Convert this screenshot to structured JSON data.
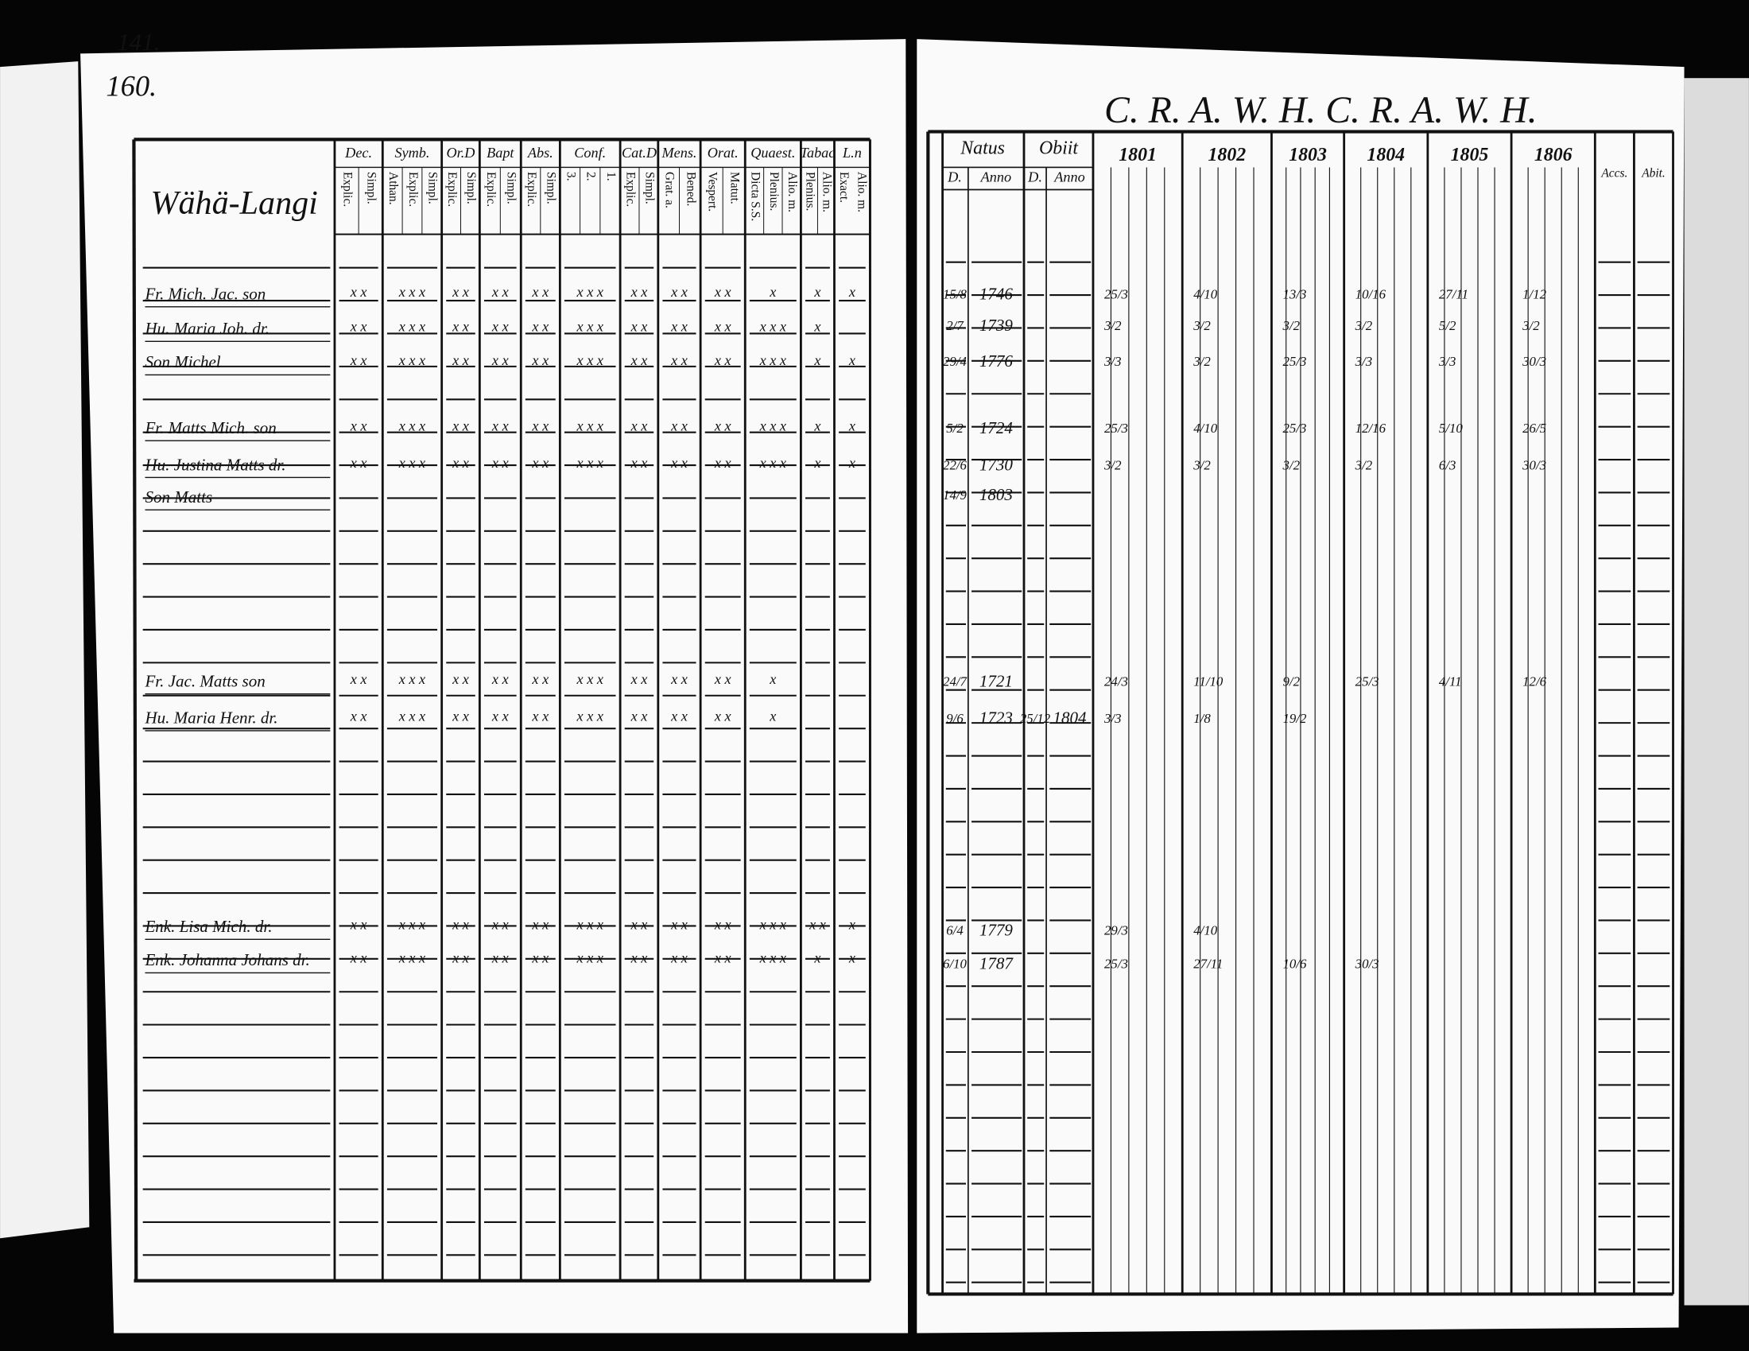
{
  "left_page": {
    "page_numbers": [
      "141.",
      "160."
    ],
    "village": "Wähä-Langi",
    "columns": [
      {
        "label": "Dec.",
        "sub": [
          "Explic.",
          "Simpl."
        ]
      },
      {
        "label": "Symb.",
        "sub": [
          "Athan.",
          "Explic.",
          "Simpl."
        ]
      },
      {
        "label": "Or.D",
        "sub": [
          "Explic.",
          "Simpl."
        ]
      },
      {
        "label": "Bapt",
        "sub": [
          "Explic.",
          "Simpl."
        ]
      },
      {
        "label": "Abs.",
        "sub": [
          "Explic.",
          "Simpl."
        ]
      },
      {
        "label": "Conf.",
        "sub": [
          "3.",
          "2.",
          "1."
        ]
      },
      {
        "label": "Cat.D",
        "sub": [
          "Explic.",
          "Simpl."
        ]
      },
      {
        "label": "Mens.",
        "sub": [
          "Grat. a.",
          "Bened."
        ]
      },
      {
        "label": "Orat.",
        "sub": [
          "Vespert.",
          "Matut."
        ]
      },
      {
        "label": "Quaest.",
        "sub": [
          "Dicta S.S.",
          "Plenius.",
          "Alio. m."
        ]
      },
      {
        "label": "Tabac",
        "sub": [
          "Plenius.",
          "Alio. m."
        ]
      },
      {
        "label": "L.n",
        "sub": [
          "Exact.",
          "Alio. m."
        ]
      }
    ],
    "persons": [
      {
        "name": "Fr. Mich. Jac. son",
        "marks": [
          "x x",
          "x x x",
          "x x",
          "x x",
          "x x",
          "x x x",
          "x x",
          "x x",
          "x x",
          "x",
          "x",
          "x"
        ]
      },
      {
        "name": "Hu. Maria Joh. dr.",
        "marks": [
          "x x",
          "x x x",
          "x x",
          "x x",
          "x x",
          "x x x",
          "x x",
          "x x",
          "x x",
          "x x x",
          "x"
        ]
      },
      {
        "name": "Son Michel",
        "marks": [
          "x x",
          "x x x",
          "x x",
          "x x",
          "x x",
          "x x x",
          "x x",
          "x x",
          "x x",
          "x x x",
          "x",
          "x"
        ]
      },
      {
        "name": "Fr. Matts Mich. son",
        "marks": [
          "x x",
          "x x x",
          "x x",
          "x x",
          "x x",
          "x x x",
          "x x",
          "x x",
          "x x",
          "x x x",
          "x",
          "x"
        ]
      },
      {
        "name": "Hu. Justina Matts dr.",
        "marks": [
          "x x",
          "x x x",
          "x x",
          "x x",
          "x x",
          "x x x",
          "x x",
          "x x",
          "x x",
          "x x x",
          "x",
          "x"
        ]
      },
      {
        "name": "Son Matts"
      },
      {
        "name": "Fr. Jac. Matts son",
        "marks": [
          "x x",
          "x x x",
          "x x",
          "x x",
          "x x",
          "x x x",
          "x x",
          "x x",
          "x x",
          "x"
        ]
      },
      {
        "name": "Hu. Maria Henr. dr.",
        "marks": [
          "x x",
          "x x x",
          "x x",
          "x x",
          "x x",
          "x x x",
          "x x",
          "x x",
          "x x",
          "x"
        ]
      },
      {
        "name": "Enk. Lisa Mich. dr.",
        "marks": [
          "x x",
          "x x x",
          "x x",
          "x x",
          "x x",
          "x x x",
          "x x",
          "x x",
          "x x",
          "x x x",
          "x x",
          "x"
        ]
      },
      {
        "name": "Enk. Johanna Johans dr.",
        "marks": [
          "x x",
          "x x x",
          "x x",
          "x x",
          "x x",
          "x x x",
          "x x",
          "x x",
          "x x",
          "x x x",
          "x",
          "x"
        ]
      }
    ]
  },
  "right_page": {
    "header_note": "C. R. A. W. H.   C. R. A. W. H.",
    "natus": {
      "label": "Natus",
      "sub": [
        "D.",
        "Anno"
      ]
    },
    "obiit": {
      "label": "Obiit",
      "sub": [
        "D.",
        "Anno"
      ]
    },
    "years": [
      "1801",
      "1802",
      "1803",
      "1804",
      "1805",
      "1806"
    ],
    "extra_columns": [
      "Accs.",
      "Abit."
    ],
    "rows": [
      {
        "day": "15/8",
        "year": "1746",
        "visits": [
          "25/3",
          "4/10",
          "13/3",
          "10/16",
          "27/11",
          "1/12"
        ]
      },
      {
        "day": "2/7",
        "year": "1739",
        "visits": [
          "3/2",
          "3/2",
          "3/2",
          "3/2",
          "5/2",
          "3/2"
        ]
      },
      {
        "day": "29/4",
        "year": "1776",
        "visits": [
          "3/3",
          "3/2",
          "25/3",
          "3/3",
          "3/3",
          "30/3"
        ]
      },
      {
        "day": "5/2",
        "year": "1724",
        "visits": [
          "25/3",
          "4/10",
          "25/3",
          "12/16",
          "5/10",
          "26/5"
        ]
      },
      {
        "day": "22/6",
        "year": "1730",
        "visits": [
          "3/2",
          "3/2",
          "3/2",
          "3/2",
          "6/3",
          "30/3"
        ]
      },
      {
        "day": "14/9",
        "year": "1803"
      },
      {
        "day": "24/7",
        "year": "1721",
        "visits": [
          "24/3",
          "11/10",
          "9/2",
          "25/3",
          "4/11",
          "12/6"
        ]
      },
      {
        "day": "9/6",
        "year": "1723",
        "obiit_day": "25/12",
        "obiit_year": "1804",
        "visits": [
          "3/3",
          "1/8",
          "19/2"
        ]
      },
      {
        "day": "6/4",
        "year": "1779",
        "visits": [
          "29/3",
          "4/10"
        ]
      },
      {
        "day": "6/10",
        "year": "1787",
        "visits": [
          "25/3",
          "27/11",
          "10/6",
          "30/3"
        ]
      }
    ]
  }
}
